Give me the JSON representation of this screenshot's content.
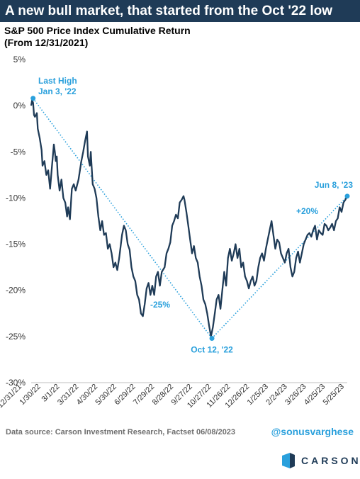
{
  "header": {
    "title": "A new bull market, that started from the Oct '22 low"
  },
  "subtitle": {
    "line1": "S&P 500 Price Index Cumulative Return",
    "line2": "(From 12/31/2021)"
  },
  "chart_data": {
    "type": "line",
    "series": [
      {
        "values": [
          [
            0,
            0.0
          ],
          [
            1,
            0.6
          ],
          [
            2,
            0.3
          ],
          [
            3,
            -1.0
          ],
          [
            4,
            -1.2
          ],
          [
            6,
            -0.8
          ],
          [
            7,
            -2.5
          ],
          [
            9,
            -3.5
          ],
          [
            11,
            -4.8
          ],
          [
            12,
            -6.5
          ],
          [
            14,
            -6.0
          ],
          [
            16,
            -7.5
          ],
          [
            18,
            -7.0
          ],
          [
            20,
            -9.0
          ],
          [
            22,
            -6.5
          ],
          [
            24,
            -4.2
          ],
          [
            25,
            -5.0
          ],
          [
            26,
            -6.0
          ],
          [
            27,
            -5.5
          ],
          [
            28,
            -7.5
          ],
          [
            30,
            -9.2
          ],
          [
            32,
            -8.0
          ],
          [
            34,
            -10.0
          ],
          [
            36,
            -10.5
          ],
          [
            38,
            -12.0
          ],
          [
            39,
            -11.0
          ],
          [
            41,
            -12.3
          ],
          [
            43,
            -9.0
          ],
          [
            45,
            -8.5
          ],
          [
            47,
            -9.2
          ],
          [
            50,
            -8.0
          ],
          [
            53,
            -6.0
          ],
          [
            55,
            -5.0
          ],
          [
            57,
            -3.8
          ],
          [
            59,
            -2.8
          ],
          [
            60,
            -5.5
          ],
          [
            62,
            -6.5
          ],
          [
            63,
            -5.0
          ],
          [
            65,
            -8.5
          ],
          [
            67,
            -9.0
          ],
          [
            69,
            -10.0
          ],
          [
            71,
            -12.0
          ],
          [
            73,
            -13.5
          ],
          [
            75,
            -12.5
          ],
          [
            77,
            -14.0
          ],
          [
            79,
            -13.8
          ],
          [
            81,
            -15.5
          ],
          [
            83,
            -15.0
          ],
          [
            85,
            -16.0
          ],
          [
            87,
            -17.5
          ],
          [
            89,
            -17.0
          ],
          [
            91,
            -17.8
          ],
          [
            93,
            -16.5
          ],
          [
            96,
            -14.0
          ],
          [
            98,
            -13.0
          ],
          [
            100,
            -13.5
          ],
          [
            102,
            -15.0
          ],
          [
            104,
            -15.6
          ],
          [
            106,
            -17.5
          ],
          [
            108,
            -18.5
          ],
          [
            110,
            -19.0
          ],
          [
            112,
            -20.5
          ],
          [
            114,
            -21.0
          ],
          [
            116,
            -22.5
          ],
          [
            118,
            -22.8
          ],
          [
            120,
            -21.5
          ],
          [
            122,
            -19.8
          ],
          [
            124,
            -19.2
          ],
          [
            126,
            -20.5
          ],
          [
            128,
            -19.5
          ],
          [
            130,
            -20.5
          ],
          [
            132,
            -18.5
          ],
          [
            134,
            -18.0
          ],
          [
            136,
            -19.5
          ],
          [
            138,
            -18.0
          ],
          [
            141,
            -17.5
          ],
          [
            143,
            -16.0
          ],
          [
            145,
            -15.5
          ],
          [
            147,
            -14.8
          ],
          [
            149,
            -13.0
          ],
          [
            151,
            -12.5
          ],
          [
            153,
            -11.8
          ],
          [
            155,
            -12.2
          ],
          [
            157,
            -10.5
          ],
          [
            159,
            -10.2
          ],
          [
            161,
            -9.8
          ],
          [
            162,
            -10.2
          ],
          [
            164,
            -11.5
          ],
          [
            166,
            -13.0
          ],
          [
            168,
            -14.5
          ],
          [
            170,
            -16.0
          ],
          [
            172,
            -15.2
          ],
          [
            174,
            -16.5
          ],
          [
            176,
            -17.0
          ],
          [
            178,
            -18.5
          ],
          [
            180,
            -19.5
          ],
          [
            182,
            -21.0
          ],
          [
            184,
            -21.5
          ],
          [
            186,
            -22.5
          ],
          [
            188,
            -23.8
          ],
          [
            190,
            -25.0
          ],
          [
            192,
            -24.0
          ],
          [
            194,
            -22.5
          ],
          [
            196,
            -21.0
          ],
          [
            198,
            -20.5
          ],
          [
            200,
            -22.0
          ],
          [
            202,
            -20.0
          ],
          [
            204,
            -18.0
          ],
          [
            206,
            -19.5
          ],
          [
            208,
            -16.5
          ],
          [
            210,
            -15.5
          ],
          [
            212,
            -16.8
          ],
          [
            214,
            -16.0
          ],
          [
            216,
            -15.0
          ],
          [
            218,
            -16.5
          ],
          [
            220,
            -15.5
          ],
          [
            222,
            -17.5
          ],
          [
            224,
            -17.0
          ],
          [
            226,
            -18.5
          ],
          [
            228,
            -19.0
          ],
          [
            230,
            -19.8
          ],
          [
            232,
            -19.0
          ],
          [
            234,
            -18.5
          ],
          [
            236,
            -19.5
          ],
          [
            238,
            -19.0
          ],
          [
            240,
            -17.5
          ],
          [
            242,
            -16.5
          ],
          [
            244,
            -16.0
          ],
          [
            246,
            -16.8
          ],
          [
            248,
            -15.5
          ],
          [
            250,
            -14.5
          ],
          [
            252,
            -13.5
          ],
          [
            254,
            -12.5
          ],
          [
            256,
            -14.0
          ],
          [
            258,
            -15.5
          ],
          [
            260,
            -14.5
          ],
          [
            262,
            -14.8
          ],
          [
            264,
            -16.0
          ],
          [
            266,
            -16.5
          ],
          [
            268,
            -17.0
          ],
          [
            270,
            -16.0
          ],
          [
            272,
            -15.5
          ],
          [
            274,
            -17.5
          ],
          [
            276,
            -18.5
          ],
          [
            278,
            -18.0
          ],
          [
            280,
            -16.5
          ],
          [
            282,
            -15.8
          ],
          [
            284,
            -17.0
          ],
          [
            286,
            -16.0
          ],
          [
            288,
            -15.0
          ],
          [
            290,
            -14.5
          ],
          [
            292,
            -14.0
          ],
          [
            294,
            -13.8
          ],
          [
            296,
            -14.2
          ],
          [
            298,
            -13.5
          ],
          [
            300,
            -13.0
          ],
          [
            302,
            -14.5
          ],
          [
            304,
            -13.5
          ],
          [
            306,
            -13.8
          ],
          [
            308,
            -14.0
          ],
          [
            310,
            -12.8
          ],
          [
            312,
            -13.0
          ],
          [
            314,
            -13.5
          ],
          [
            316,
            -13.2
          ],
          [
            318,
            -12.8
          ],
          [
            320,
            -13.5
          ],
          [
            322,
            -12.5
          ],
          [
            324,
            -12.2
          ],
          [
            326,
            -11.0
          ],
          [
            328,
            -11.5
          ],
          [
            330,
            -10.5
          ],
          [
            332,
            -10.2
          ],
          [
            334,
            -9.8
          ]
        ]
      }
    ],
    "x_tick_labels": [
      "12/31/21",
      "1/30/22",
      "3/1/22",
      "3/31/22",
      "4/30/22",
      "5/30/22",
      "6/29/22",
      "7/29/22",
      "8/28/22",
      "9/27/22",
      "10/27/22",
      "11/26/22",
      "12/26/22",
      "1/25/23",
      "2/24/23",
      "3/26/23",
      "4/25/23",
      "5/25/23"
    ],
    "y_tick_labels": [
      "5%",
      "0%",
      "-5%",
      "-10%",
      "-15%",
      "-20%",
      "-25%",
      "-30%"
    ],
    "ylim": [
      -30,
      5
    ],
    "grid": false,
    "annotations": {
      "last_high": {
        "line1": "Last High",
        "line2": "Jan 3, '22",
        "point": [
          2,
          0.8
        ]
      },
      "low": {
        "label": "Oct 12, '22",
        "point": [
          191,
          -25.2
        ]
      },
      "latest": {
        "label": "Jun 8, '23",
        "point": [
          334,
          -9.8
        ]
      },
      "decline": "-25%",
      "rally": "+20%"
    },
    "colors": {
      "line": "#1f3b57",
      "annotation": "#2aa0dc"
    }
  },
  "footer": {
    "source": "Data source: Carson Investment Research, Factset   06/08/2023",
    "handle": "@sonusvarghese"
  },
  "brand": {
    "name": "CARSON",
    "logo_icon": "carson-logo-icon"
  }
}
